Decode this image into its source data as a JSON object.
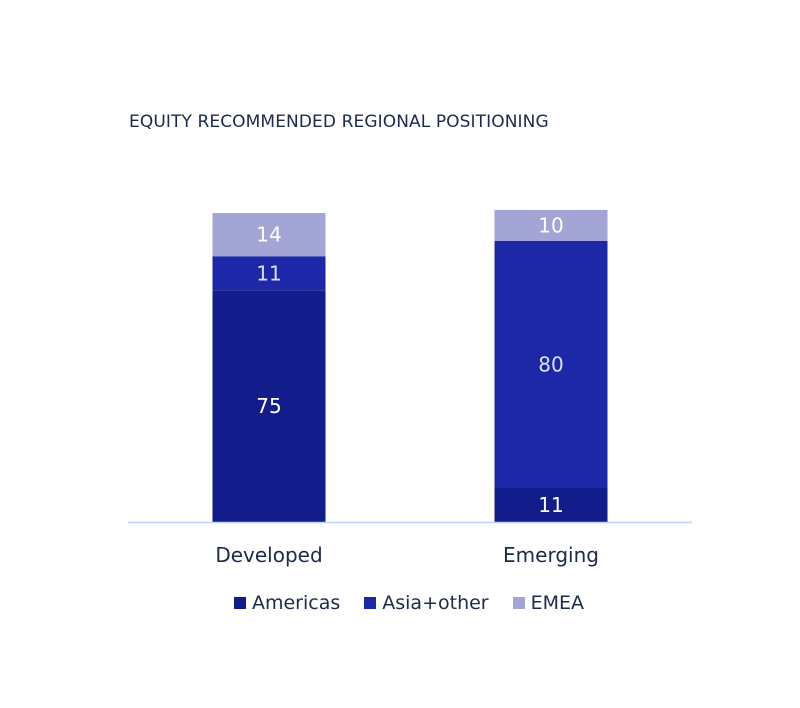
{
  "chart_data": {
    "type": "bar",
    "stacked": true,
    "title": "EQUITY RECOMMENDED REGIONAL POSITIONING",
    "categories": [
      "Developed",
      "Emerging"
    ],
    "series": [
      {
        "name": "Americas",
        "values": [
          75,
          11
        ],
        "color": "#121c8a",
        "label_color": "#ffffff"
      },
      {
        "name": "Asia+other",
        "values": [
          11,
          80
        ],
        "color": "#1c28a8",
        "label_color": "#dde0f5"
      },
      {
        "name": "EMEA",
        "values": [
          14,
          10
        ],
        "color": "#a3a6d4",
        "label_color": "#ffffff"
      }
    ],
    "ylim": [
      0,
      100
    ],
    "legend_position": "bottom",
    "grid": false,
    "axis_color": "#b9d4ec"
  }
}
